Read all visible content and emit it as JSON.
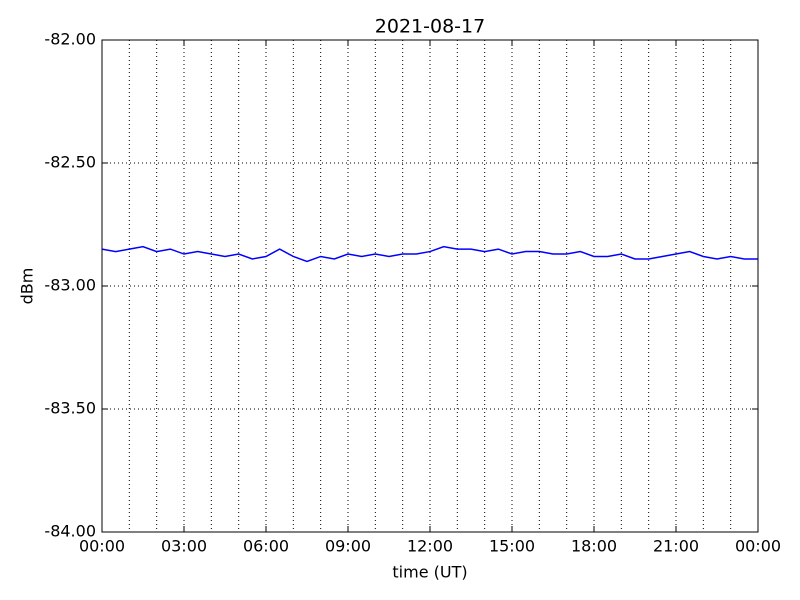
{
  "chart_data": {
    "type": "line",
    "title": "2021-08-17",
    "x_label": "time (UT)",
    "y_label": "dBm",
    "x": [
      0,
      0.5,
      1,
      1.5,
      2,
      2.5,
      3,
      3.5,
      4,
      4.5,
      5,
      5.5,
      6,
      6.5,
      7,
      7.5,
      8,
      8.5,
      9,
      9.5,
      10,
      10.5,
      11,
      11.5,
      12,
      12.5,
      13,
      13.5,
      14,
      14.5,
      15,
      15.5,
      16,
      16.5,
      17,
      17.5,
      18,
      18.5,
      19,
      19.5,
      20,
      20.5,
      21,
      21.5,
      22,
      22.5,
      23,
      23.5,
      24
    ],
    "series": [
      {
        "color": "#0000ff",
        "values": [
          -82.85,
          -82.86,
          -82.85,
          -82.84,
          -82.86,
          -82.85,
          -82.87,
          -82.86,
          -82.87,
          -82.88,
          -82.87,
          -82.89,
          -82.88,
          -82.85,
          -82.88,
          -82.9,
          -82.88,
          -82.89,
          -82.87,
          -82.88,
          -82.87,
          -82.88,
          -82.87,
          -82.87,
          -82.86,
          -82.84,
          -82.85,
          -82.85,
          -82.86,
          -82.85,
          -82.87,
          -82.86,
          -82.86,
          -82.87,
          -82.87,
          -82.86,
          -82.88,
          -82.88,
          -82.87,
          -82.89,
          -82.89,
          -82.88,
          -82.87,
          -82.86,
          -82.88,
          -82.89,
          -82.88,
          -82.89,
          -82.89
        ]
      }
    ],
    "xlim": [
      0,
      24
    ],
    "xticks": [
      {
        "value": 0,
        "label": "00:00"
      },
      {
        "value": 3,
        "label": "03:00"
      },
      {
        "value": 6,
        "label": "06:00"
      },
      {
        "value": 9,
        "label": "09:00"
      },
      {
        "value": 12,
        "label": "12:00"
      },
      {
        "value": 15,
        "label": "15:00"
      },
      {
        "value": 18,
        "label": "18:00"
      },
      {
        "value": 21,
        "label": "21:00"
      },
      {
        "value": 24,
        "label": "00:00"
      }
    ],
    "xminorticks": [
      1,
      2,
      4,
      5,
      7,
      8,
      10,
      11,
      13,
      14,
      16,
      17,
      19,
      20,
      22,
      23
    ],
    "ylim": [
      -84,
      -82
    ],
    "yticks": [
      {
        "value": -84,
        "label": "-84.00"
      },
      {
        "value": -83.5,
        "label": "-83.50"
      },
      {
        "value": -83,
        "label": "-83.00"
      },
      {
        "value": -82.5,
        "label": "-82.50"
      },
      {
        "value": -82,
        "label": "-82.00"
      }
    ],
    "grid": true
  }
}
